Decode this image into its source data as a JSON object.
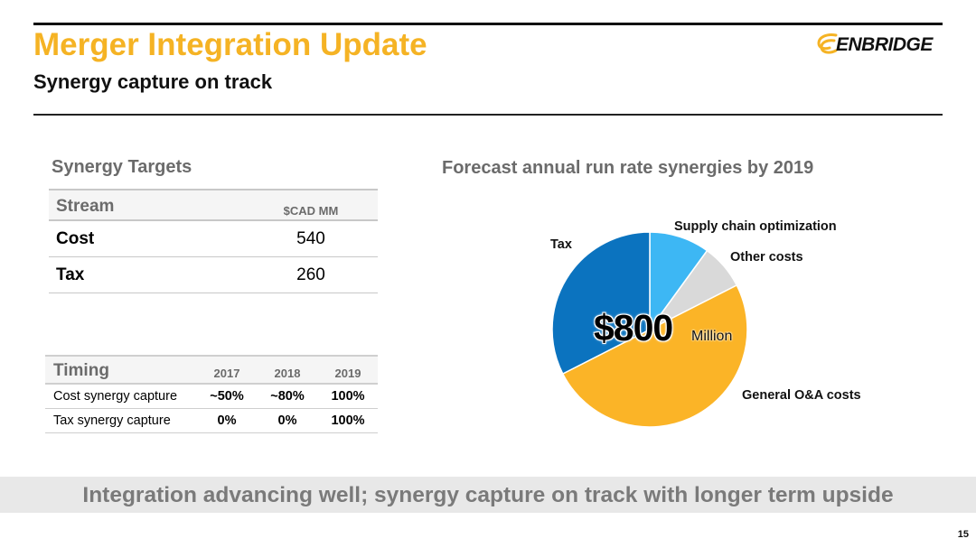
{
  "header": {
    "title": "Merger Integration Update",
    "subtitle": "Synergy capture on track",
    "logo_text": "ENBRIDGE"
  },
  "targets": {
    "heading": "Synergy Targets",
    "col_stream": "Stream",
    "col_value": "$CAD MM",
    "rows": [
      {
        "name": "Cost",
        "value": "540"
      },
      {
        "name": "Tax",
        "value": "260"
      }
    ]
  },
  "timing": {
    "heading": "Timing",
    "years": [
      "2017",
      "2018",
      "2019"
    ],
    "rows": [
      {
        "name": "Cost synergy capture",
        "values": [
          "~50%",
          "~80%",
          "100%"
        ]
      },
      {
        "name": "Tax synergy capture",
        "values": [
          "0%",
          "0%",
          "100%"
        ]
      }
    ]
  },
  "chart_data": {
    "type": "pie",
    "title": "Forecast annual run rate synergies by 2019",
    "center_value": "$800",
    "center_unit": "Million",
    "total": 800,
    "slices": [
      {
        "label": "Supply chain optimization",
        "value": 80,
        "color": "#3db7f4"
      },
      {
        "label": "Other costs",
        "value": 60,
        "color": "#d9d9d9"
      },
      {
        "label": "General O&A costs",
        "value": 400,
        "color": "#fbb427"
      },
      {
        "label": "Tax",
        "value": 260,
        "color": "#0b73bf"
      }
    ]
  },
  "banner": {
    "text": "Integration advancing well; synergy capture on track with longer term upside"
  },
  "footer": {
    "page_number": "15"
  },
  "colors": {
    "title": "#f5b324",
    "heading_gray": "#6b6b6b",
    "banner_bg": "#e8e8e8"
  }
}
